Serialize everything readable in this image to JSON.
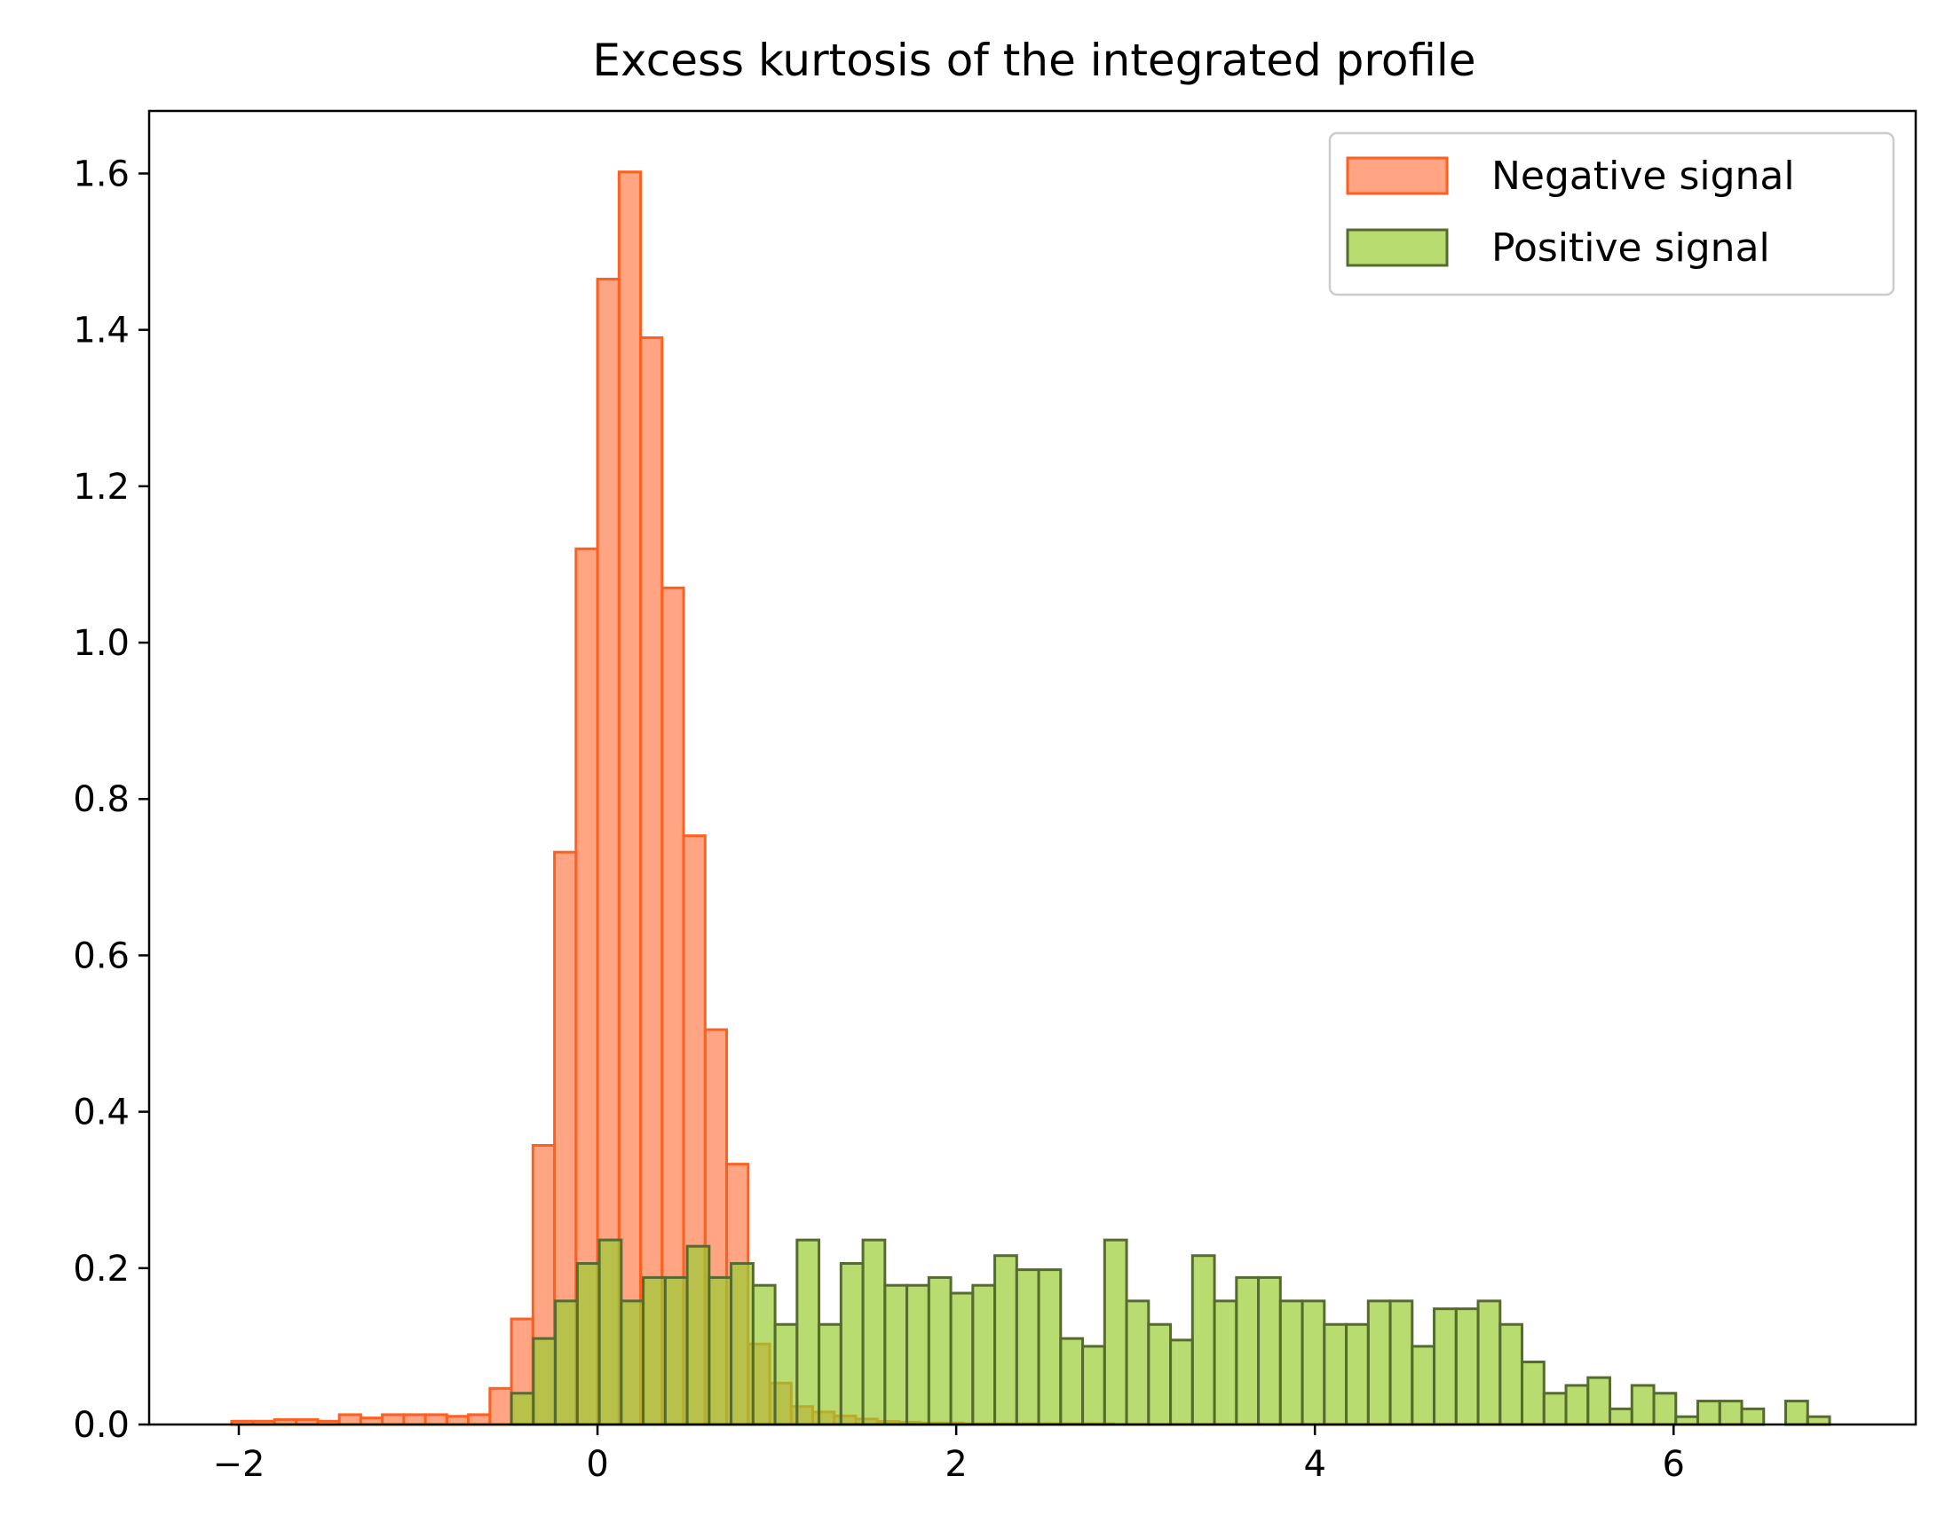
{
  "chart_data": {
    "type": "bar",
    "subtype": "histogram",
    "title": "Excess kurtosis of the integrated profile",
    "xlabel": "",
    "ylabel": "",
    "xlim": [
      -2.5,
      7.35
    ],
    "ylim": [
      0,
      1.68
    ],
    "xticks": [
      -2,
      0,
      2,
      4,
      6
    ],
    "xtick_labels": [
      "−2",
      "0",
      "2",
      "4",
      "6"
    ],
    "yticks": [
      0.0,
      0.2,
      0.4,
      0.6,
      0.8,
      1.0,
      1.2,
      1.4,
      1.6
    ],
    "ytick_labels": [
      "0.0",
      "0.2",
      "0.4",
      "0.6",
      "0.8",
      "1.0",
      "1.2",
      "1.4",
      "1.6"
    ],
    "grid": false,
    "legend_position": "top-right",
    "series": [
      {
        "name": "Negative signal",
        "fill": "#ff7f50",
        "fill_opacity": 0.7,
        "stroke": "#ff5f1f",
        "bin_width": 0.12,
        "bin_start": -2.04,
        "values": [
          0.0042,
          0.0042,
          0.0063,
          0.0063,
          0.0042,
          0.0126,
          0.0084,
          0.0126,
          0.0126,
          0.0126,
          0.0105,
          0.0126,
          0.0462,
          0.135,
          0.357,
          0.732,
          1.12,
          1.465,
          1.602,
          1.39,
          1.07,
          0.753,
          0.505,
          0.333,
          0.103,
          0.053,
          0.023,
          0.016,
          0.011,
          0.007,
          0.004,
          0.003,
          0.002,
          0.002,
          0.001,
          0.001,
          0.001,
          0.001,
          0.001,
          0.001,
          0.001
        ]
      },
      {
        "name": "Positive signal",
        "fill": "#9acd32",
        "fill_opacity": 0.7,
        "stroke": "#556b2f",
        "bin_width": 0.1225,
        "bin_start": -0.48,
        "values": [
          0.04,
          0.11,
          0.158,
          0.206,
          0.236,
          0.158,
          0.188,
          0.188,
          0.228,
          0.188,
          0.206,
          0.178,
          0.128,
          0.236,
          0.128,
          0.206,
          0.236,
          0.178,
          0.178,
          0.188,
          0.168,
          0.178,
          0.216,
          0.198,
          0.198,
          0.11,
          0.1,
          0.236,
          0.158,
          0.128,
          0.108,
          0.216,
          0.158,
          0.188,
          0.188,
          0.158,
          0.158,
          0.128,
          0.128,
          0.158,
          0.158,
          0.1,
          0.148,
          0.148,
          0.158,
          0.128,
          0.08,
          0.04,
          0.05,
          0.06,
          0.02,
          0.05,
          0.04,
          0.01,
          0.03,
          0.03,
          0.02,
          0.0,
          0.03,
          0.01
        ]
      }
    ]
  }
}
